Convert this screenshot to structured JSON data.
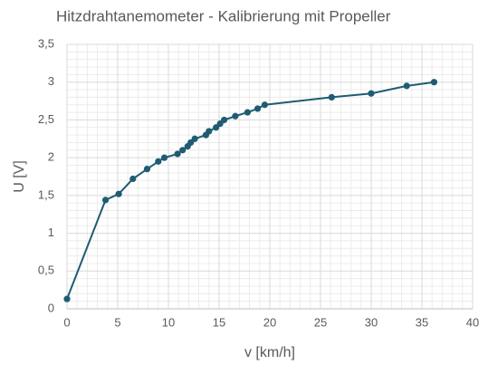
{
  "chart_data": {
    "type": "line",
    "title": "Hitzdrahtanemometer - Kalibrierung mit Propeller",
    "x_label": "v [km/h]",
    "y_label": "U [V]",
    "x": [
      0,
      3.8,
      5.1,
      6.5,
      7.9,
      9.0,
      9.6,
      10.9,
      11.4,
      11.9,
      12.2,
      12.6,
      13.7,
      14.0,
      14.7,
      15.1,
      15.5,
      16.6,
      17.8,
      18.8,
      19.5,
      26.1,
      30.0,
      33.5,
      36.2
    ],
    "values": [
      0.13,
      1.44,
      1.52,
      1.72,
      1.85,
      1.95,
      2.0,
      2.05,
      2.1,
      2.15,
      2.2,
      2.25,
      2.3,
      2.35,
      2.4,
      2.45,
      2.5,
      2.55,
      2.6,
      2.65,
      2.7,
      2.8,
      2.85,
      2.95,
      3.0
    ],
    "color": "#1f5c73",
    "xlim": [
      0,
      40
    ],
    "xticks": [
      0,
      5,
      10,
      15,
      20,
      25,
      30,
      35,
      40
    ],
    "ylim": [
      0,
      3.5
    ],
    "yticks": [
      0,
      {
        "value": 0.5,
        "label": "0,5"
      },
      1,
      {
        "value": 1.5,
        "label": "1,5"
      },
      2,
      {
        "value": 2.5,
        "label": "2,5"
      },
      3,
      {
        "value": 3.5,
        "label": "3,5"
      }
    ],
    "grid": true,
    "minor_grid": true
  }
}
